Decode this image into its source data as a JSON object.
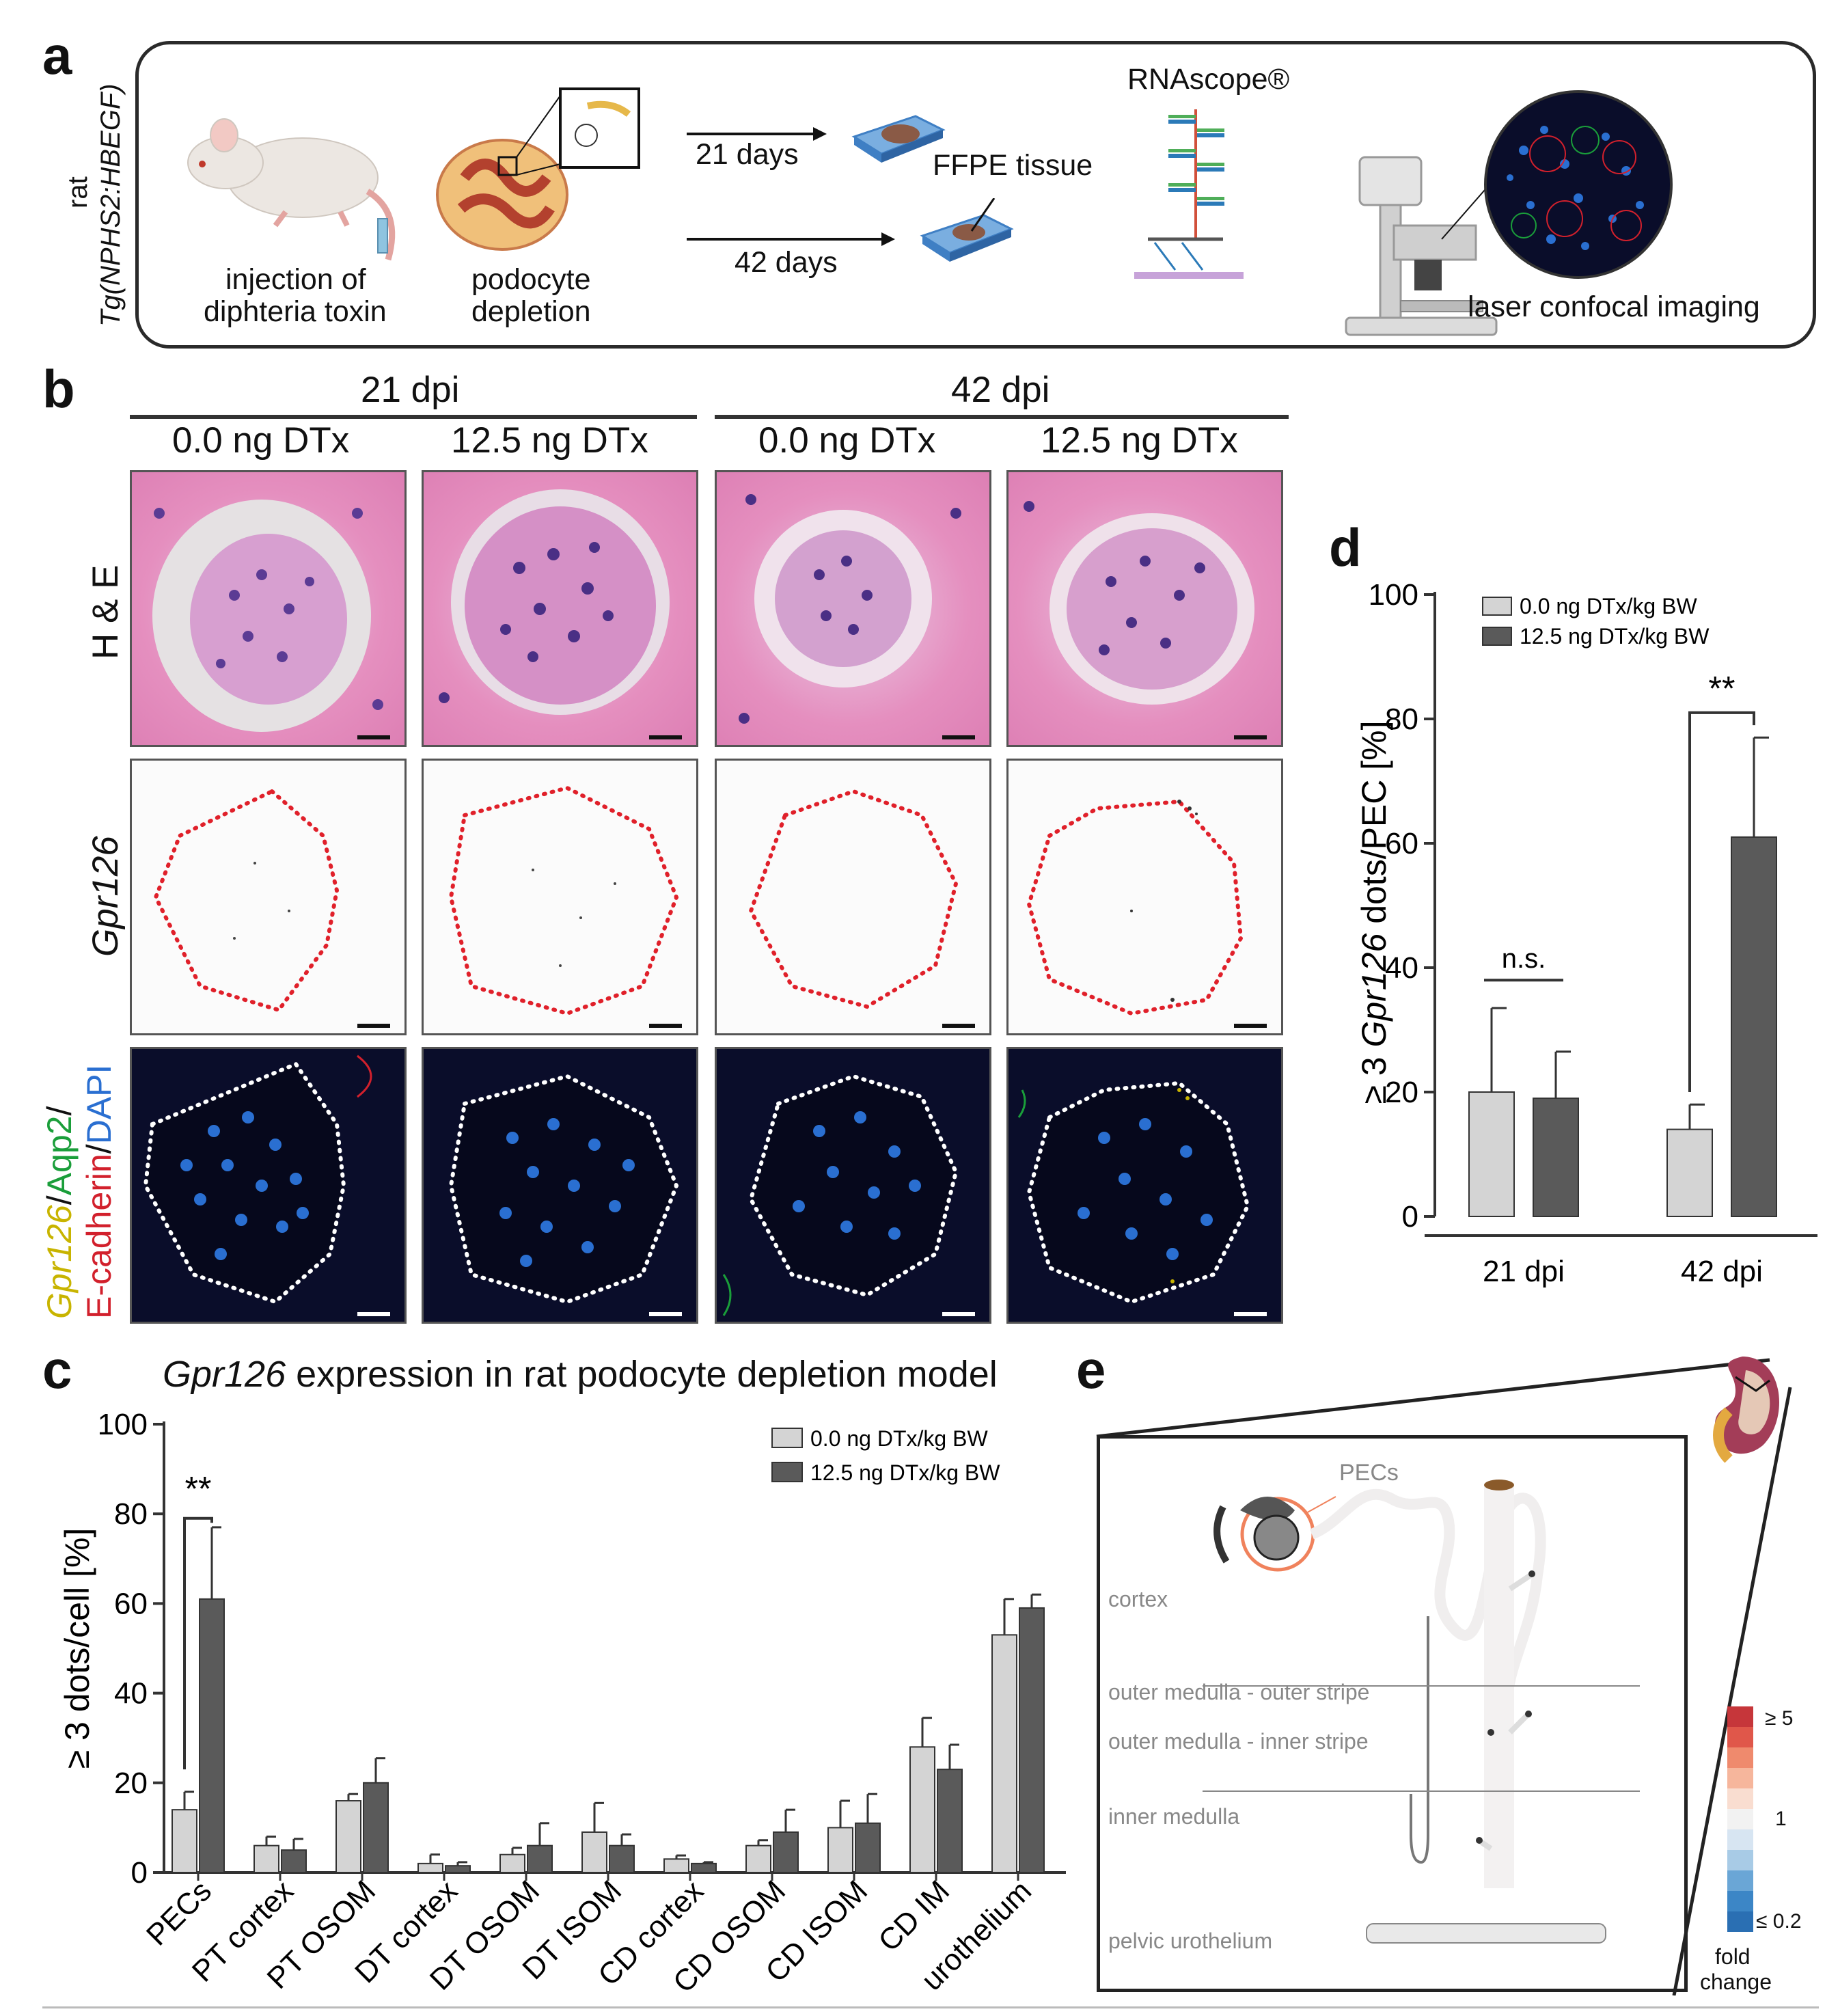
{
  "panel_labels": {
    "a": "a",
    "b": "b",
    "c": "c",
    "d": "d",
    "e": "e"
  },
  "panel_a": {
    "side_label_line1": "rat",
    "side_label_line2": "Tg(NPHS2:HBEGF)",
    "injection_line1": "injection of",
    "injection_line2": "diphteria toxin",
    "depletion_line1": "podocyte",
    "depletion_line2": "depletion",
    "days_21": "21 days",
    "days_42": "42 days",
    "ffpe": "FFPE tissue",
    "rnascope": "RNAscope®",
    "imaging": "laser confocal imaging",
    "colors": {
      "rat": "#e9e4df",
      "kidney": "#c97a4a",
      "slide": "#3f7fc4",
      "tissue": "#8a5a46",
      "probe_green": "#4fae59",
      "probe_blue": "#2b7ab8",
      "probe_red": "#d1503b",
      "microscope": "#d8d8d8"
    }
  },
  "panel_b": {
    "groups": [
      "21 dpi",
      "42 dpi"
    ],
    "columns": [
      "0.0 ng DTx",
      "12.5 ng DTx",
      "0.0 ng DTx",
      "12.5 ng DTx"
    ],
    "row_he": "H & E",
    "row_gpr": "Gpr126",
    "row_fl_gpr": "Gpr126",
    "row_fl_sep1": "/",
    "row_fl_aqp": "Aqp2",
    "row_fl_sep2": "/",
    "row_fl_ecad": "E-cadherin",
    "row_fl_sep3": "/",
    "row_fl_dapi": "DAPI",
    "colors": {
      "gpr": "#c8b400",
      "aqp": "#1a9e3a",
      "ecad": "#d2202c",
      "dapi": "#2a6fd1",
      "outline_red": "#e0202a",
      "outline_white": "#ffffff"
    }
  },
  "panel_c": {
    "title_italic": "Gpr126",
    "title_rest": " expression in rat podocyte depletion model"
  },
  "panel_e": {
    "pecs": "PECs",
    "cortex": "cortex",
    "outer_outer": "outer medulla - outer stripe",
    "outer_inner": "outer medulla - inner stripe",
    "inner": "inner medulla",
    "pelvic": "pelvic urothelium",
    "legend_top": "≥ 5",
    "legend_mid": "1",
    "legend_bottom": "≤ 0.2",
    "legend_title_1": "fold",
    "legend_title_2": "change",
    "scale_colors": [
      "#c6363a",
      "#e0574a",
      "#ef8a6d",
      "#f6b69c",
      "#f9ddd0",
      "#f2f2f2",
      "#d7e5f2",
      "#a8cbe6",
      "#6aa6d6",
      "#3c86c6",
      "#2a6fb3"
    ]
  },
  "chart_data": [
    {
      "id": "panel_c",
      "type": "bar",
      "title": "Gpr126 expression in rat podocyte depletion model",
      "xlabel": "",
      "ylabel": "≥ 3 dots/cell [%]",
      "ylim": [
        0,
        100
      ],
      "yticks": [
        0,
        20,
        40,
        60,
        80,
        100
      ],
      "categories": [
        "PECs",
        "PT cortex",
        "PT OSOM",
        "DT cortex",
        "DT OSOM",
        "DT ISOM",
        "CD cortex",
        "CD OSOM",
        "CD ISOM",
        "CD IM",
        "urothelium"
      ],
      "series": [
        {
          "name": "0.0 ng DTx/kg BW",
          "color": "#d4d4d4",
          "values": [
            14,
            6,
            16,
            2,
            4,
            9,
            3,
            6,
            10,
            28,
            53
          ],
          "errors": [
            4,
            2,
            1.5,
            2,
            1.5,
            6.5,
            0.8,
            1.2,
            6,
            6.5,
            8
          ]
        },
        {
          "name": "12.5 ng DTx/kg BW",
          "color": "#5a5a5a",
          "values": [
            61,
            5,
            20,
            1.5,
            6,
            6,
            2,
            9,
            11,
            23,
            59
          ],
          "errors": [
            16,
            2.5,
            5.5,
            0.8,
            5,
            2.5,
            0.3,
            5,
            6.5,
            5.5,
            3
          ]
        }
      ],
      "annotations": [
        {
          "text": "**",
          "category": "PECs"
        }
      ],
      "legend": "top-right"
    },
    {
      "id": "panel_d",
      "type": "bar",
      "title": "",
      "xlabel": "",
      "ylabel_parts": [
        "≥ 3 ",
        "Gpr126",
        " dots/PEC [%]"
      ],
      "ylim": [
        0,
        100
      ],
      "yticks": [
        0,
        20,
        40,
        60,
        80,
        100
      ],
      "categories": [
        "21 dpi",
        "42 dpi"
      ],
      "series": [
        {
          "name": "0.0 ng DTx/kg BW",
          "color": "#d4d4d4",
          "values": [
            20,
            14
          ],
          "errors": [
            13.5,
            4
          ]
        },
        {
          "name": "12.5 ng DTx/kg BW",
          "color": "#5a5a5a",
          "values": [
            19,
            61
          ],
          "errors": [
            7.5,
            16
          ]
        }
      ],
      "annotations": [
        {
          "text": "n.s.",
          "category": "21 dpi"
        },
        {
          "text": "**",
          "category": "42 dpi"
        }
      ],
      "legend": "top-left"
    }
  ]
}
